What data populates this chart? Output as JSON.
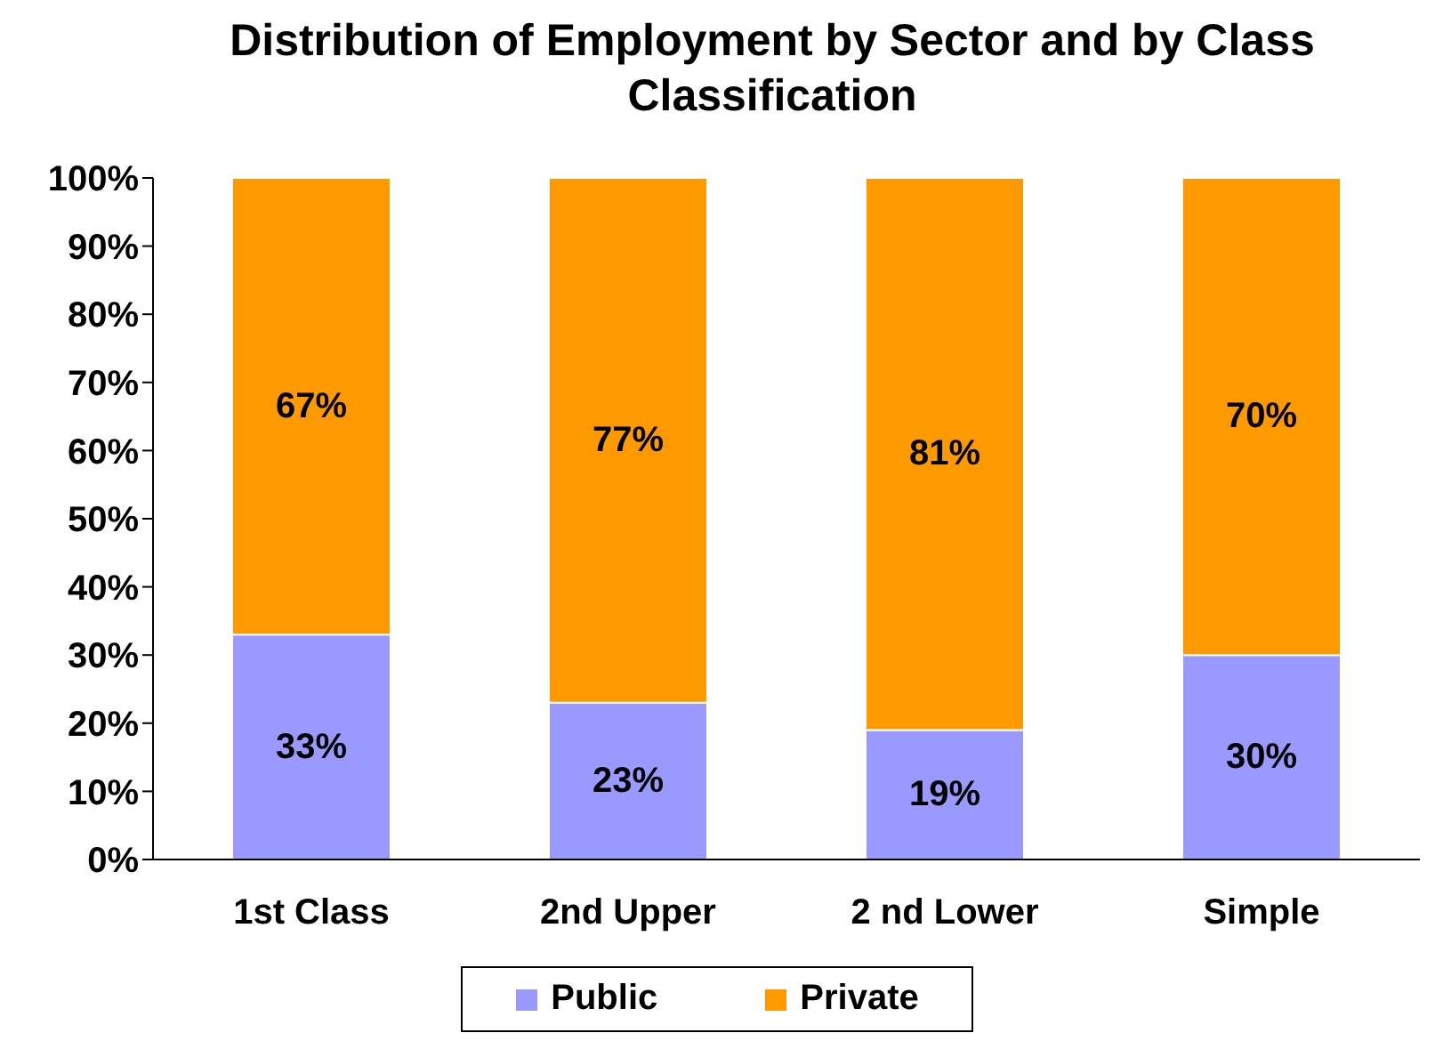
{
  "chart_data": {
    "type": "bar",
    "stacked": true,
    "title": "Distribution of Employment by Sector and by Class Classification",
    "categories": [
      "1st Class",
      "2nd Upper",
      "2 nd Lower",
      "Simple"
    ],
    "series": [
      {
        "name": "Public",
        "color": "#9999ff",
        "values": [
          33,
          23,
          19,
          30
        ],
        "value_labels": [
          "33%",
          "23%",
          "19%",
          "30%"
        ]
      },
      {
        "name": "Private",
        "color": "#ff9900",
        "values": [
          67,
          77,
          81,
          70
        ],
        "value_labels": [
          "67%",
          "77%",
          "81%",
          "70%"
        ]
      }
    ],
    "ylim": [
      0,
      100
    ],
    "yticks": [
      {
        "value": 0,
        "label": "0%"
      },
      {
        "value": 10,
        "label": "10%"
      },
      {
        "value": 20,
        "label": "20%"
      },
      {
        "value": 30,
        "label": "30%"
      },
      {
        "value": 40,
        "label": "40%"
      },
      {
        "value": 50,
        "label": "50%"
      },
      {
        "value": 60,
        "label": "60%"
      },
      {
        "value": 70,
        "label": "70%"
      },
      {
        "value": 80,
        "label": "80%"
      },
      {
        "value": 90,
        "label": "90%"
      },
      {
        "value": 100,
        "label": "100%"
      }
    ],
    "grid": false,
    "legend": "bottom"
  }
}
